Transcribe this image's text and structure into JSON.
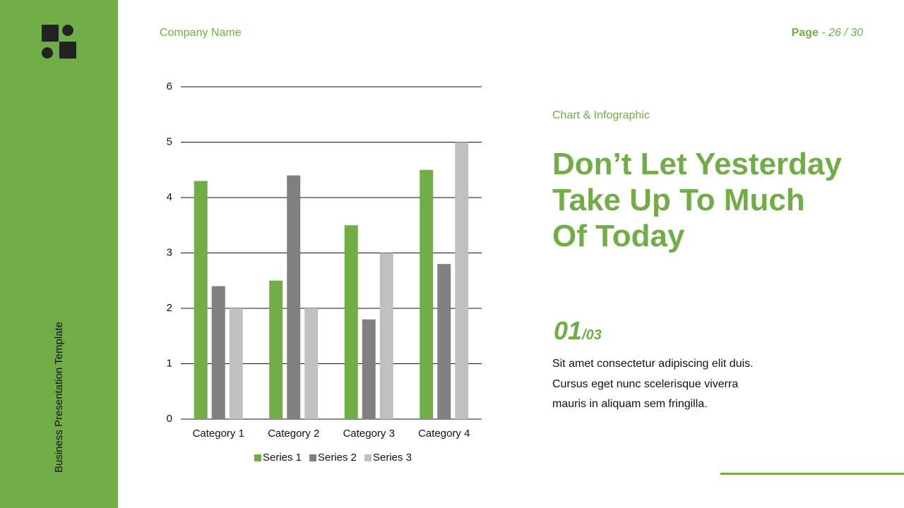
{
  "chart_data": {
    "type": "bar",
    "categories": [
      "Category 1",
      "Category 2",
      "Category 3",
      "Category 4"
    ],
    "series": [
      {
        "name": "Series 1",
        "color": "#70ad47",
        "values": [
          4.3,
          2.5,
          3.5,
          4.5
        ]
      },
      {
        "name": "Series 2",
        "color": "#808080",
        "values": [
          2.4,
          4.4,
          1.8,
          2.8
        ]
      },
      {
        "name": "Series 3",
        "color": "#c0c0c0",
        "values": [
          2,
          2,
          3,
          5
        ]
      }
    ],
    "ylim": [
      0,
      6
    ],
    "yticks": [
      0,
      1,
      2,
      3,
      4,
      5,
      6
    ],
    "grid": true,
    "legend": "bottom"
  },
  "slide": {
    "company": "Company Name",
    "page_label": "Page",
    "page_number": "- 26 / 30",
    "sidebar_text": "Business Presentation Template",
    "kicker": "Chart & Infographic",
    "heading": [
      "Don’t Let Yesterday",
      "Take Up To Much",
      "Of Today"
    ],
    "step": "01",
    "step_total": "/03",
    "body": [
      "Sit amet consectetur adipiscing elit duis.",
      "Cursus eget nunc scelerisque viverra",
      "mauris in aliquam sem fringilla."
    ]
  }
}
